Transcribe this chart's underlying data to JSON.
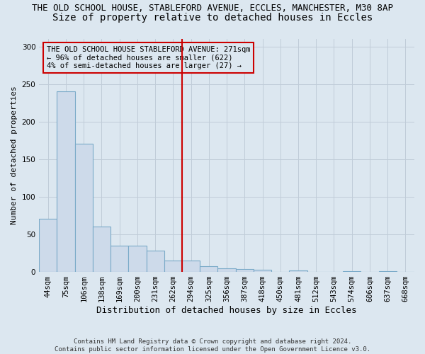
{
  "title_main": "THE OLD SCHOOL HOUSE, STABLEFORD AVENUE, ECCLES, MANCHESTER, M30 8AP",
  "title_sub": "Size of property relative to detached houses in Eccles",
  "xlabel": "Distribution of detached houses by size in Eccles",
  "ylabel": "Number of detached properties",
  "categories": [
    "44sqm",
    "75sqm",
    "106sqm",
    "138sqm",
    "169sqm",
    "200sqm",
    "231sqm",
    "262sqm",
    "294sqm",
    "325sqm",
    "356sqm",
    "387sqm",
    "418sqm",
    "450sqm",
    "481sqm",
    "512sqm",
    "543sqm",
    "574sqm",
    "606sqm",
    "637sqm",
    "668sqm"
  ],
  "values": [
    71,
    240,
    171,
    60,
    35,
    35,
    28,
    15,
    15,
    8,
    5,
    4,
    3,
    0,
    2,
    0,
    0,
    1,
    0,
    1,
    0
  ],
  "bar_color": "#cddaea",
  "bar_edge_color": "#7aaac8",
  "vline_color": "#cc0000",
  "annotation_text": "THE OLD SCHOOL HOUSE STABLEFORD AVENUE: 271sqm\n← 96% of detached houses are smaller (622)\n4% of semi-detached houses are larger (27) →",
  "annotation_box_color": "#cc0000",
  "ylim": [
    0,
    310
  ],
  "yticks": [
    0,
    50,
    100,
    150,
    200,
    250,
    300
  ],
  "grid_color": "#c0ccd8",
  "bg_color": "#dce7f0",
  "footer": "Contains HM Land Registry data © Crown copyright and database right 2024.\nContains public sector information licensed under the Open Government Licence v3.0.",
  "title_fontsize": 9,
  "subtitle_fontsize": 10,
  "ylabel_fontsize": 8,
  "xlabel_fontsize": 9,
  "tick_fontsize": 7.5,
  "footer_fontsize": 6.5
}
